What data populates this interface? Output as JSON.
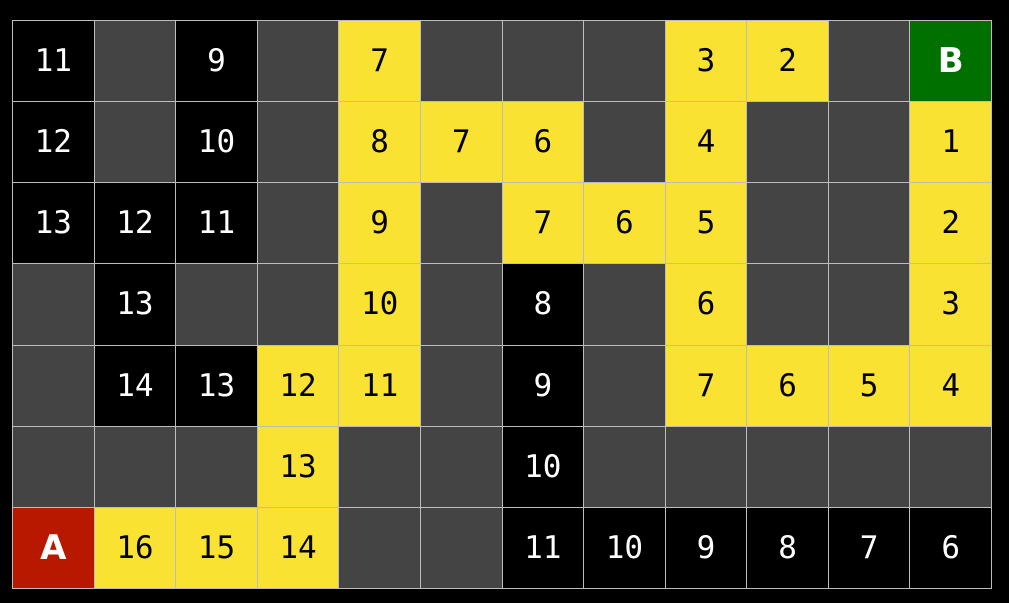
{
  "colors": {
    "wall": "#444444",
    "visited": "#000000",
    "path": "#fae232",
    "start": "#b81700",
    "goal": "#007000"
  },
  "grid": [
    [
      [
        "visited",
        "11"
      ],
      [
        "wall",
        ""
      ],
      [
        "visited",
        "9"
      ],
      [
        "wall",
        ""
      ],
      [
        "path",
        "7"
      ],
      [
        "wall",
        ""
      ],
      [
        "wall",
        ""
      ],
      [
        "wall",
        ""
      ],
      [
        "path",
        "3"
      ],
      [
        "path",
        "2"
      ],
      [
        "wall",
        ""
      ],
      [
        "goal",
        "B"
      ]
    ],
    [
      [
        "visited",
        "12"
      ],
      [
        "wall",
        ""
      ],
      [
        "visited",
        "10"
      ],
      [
        "wall",
        ""
      ],
      [
        "path",
        "8"
      ],
      [
        "path",
        "7"
      ],
      [
        "path",
        "6"
      ],
      [
        "wall",
        ""
      ],
      [
        "path",
        "4"
      ],
      [
        "wall",
        ""
      ],
      [
        "wall",
        ""
      ],
      [
        "path",
        "1"
      ]
    ],
    [
      [
        "visited",
        "13"
      ],
      [
        "visited",
        "12"
      ],
      [
        "visited",
        "11"
      ],
      [
        "wall",
        ""
      ],
      [
        "path",
        "9"
      ],
      [
        "wall",
        ""
      ],
      [
        "path",
        "7"
      ],
      [
        "path",
        "6"
      ],
      [
        "path",
        "5"
      ],
      [
        "wall",
        ""
      ],
      [
        "wall",
        ""
      ],
      [
        "path",
        "2"
      ]
    ],
    [
      [
        "wall",
        ""
      ],
      [
        "visited",
        "13"
      ],
      [
        "wall",
        ""
      ],
      [
        "wall",
        ""
      ],
      [
        "path",
        "10"
      ],
      [
        "wall",
        ""
      ],
      [
        "visited",
        "8"
      ],
      [
        "wall",
        ""
      ],
      [
        "path",
        "6"
      ],
      [
        "wall",
        ""
      ],
      [
        "wall",
        ""
      ],
      [
        "path",
        "3"
      ]
    ],
    [
      [
        "wall",
        ""
      ],
      [
        "visited",
        "14"
      ],
      [
        "visited",
        "13"
      ],
      [
        "path",
        "12"
      ],
      [
        "path",
        "11"
      ],
      [
        "wall",
        ""
      ],
      [
        "visited",
        "9"
      ],
      [
        "wall",
        ""
      ],
      [
        "path",
        "7"
      ],
      [
        "path",
        "6"
      ],
      [
        "path",
        "5"
      ],
      [
        "path",
        "4"
      ]
    ],
    [
      [
        "wall",
        ""
      ],
      [
        "wall",
        ""
      ],
      [
        "wall",
        ""
      ],
      [
        "path",
        "13"
      ],
      [
        "wall",
        ""
      ],
      [
        "wall",
        ""
      ],
      [
        "visited",
        "10"
      ],
      [
        "wall",
        ""
      ],
      [
        "wall",
        ""
      ],
      [
        "wall",
        ""
      ],
      [
        "wall",
        ""
      ],
      [
        "wall",
        ""
      ]
    ],
    [
      [
        "start",
        "A"
      ],
      [
        "path",
        "16"
      ],
      [
        "path",
        "15"
      ],
      [
        "path",
        "14"
      ],
      [
        "wall",
        ""
      ],
      [
        "wall",
        ""
      ],
      [
        "visited",
        "11"
      ],
      [
        "visited",
        "10"
      ],
      [
        "visited",
        "9"
      ],
      [
        "visited",
        "8"
      ],
      [
        "visited",
        "7"
      ],
      [
        "visited",
        "6"
      ]
    ]
  ]
}
